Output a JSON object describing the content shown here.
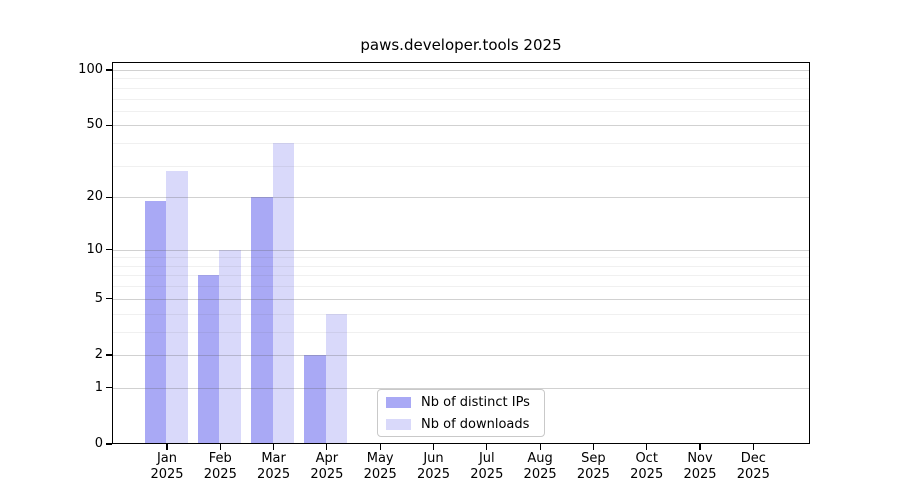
{
  "chart_data": {
    "type": "bar",
    "title": "paws.developer.tools 2025",
    "y_scale": "log1p",
    "ylim": [
      0,
      110
    ],
    "grid": "horizontal, major and minor",
    "legend_position": "inside bottom-center",
    "categories": [
      "Jan",
      "Feb",
      "Mar",
      "Apr",
      "May",
      "Jun",
      "Jul",
      "Aug",
      "Sep",
      "Oct",
      "Nov",
      "Dec"
    ],
    "x_year_label": "2025",
    "y_major_ticks": [
      0,
      1,
      2,
      5,
      10,
      20,
      50,
      100
    ],
    "y_minor_ticks": [
      3,
      4,
      6,
      7,
      8,
      9,
      30,
      40,
      60,
      70,
      80,
      90
    ],
    "series": [
      {
        "name": "Nb of distinct IPs",
        "color": "#a9a9f5",
        "values": [
          19,
          7,
          20,
          2,
          0,
          0,
          0,
          0,
          0,
          0,
          0,
          0
        ]
      },
      {
        "name": "Nb of downloads",
        "color": "#d9d9fa",
        "values": [
          28,
          10,
          40,
          4,
          0,
          0,
          0,
          0,
          0,
          0,
          0,
          0
        ]
      }
    ]
  }
}
